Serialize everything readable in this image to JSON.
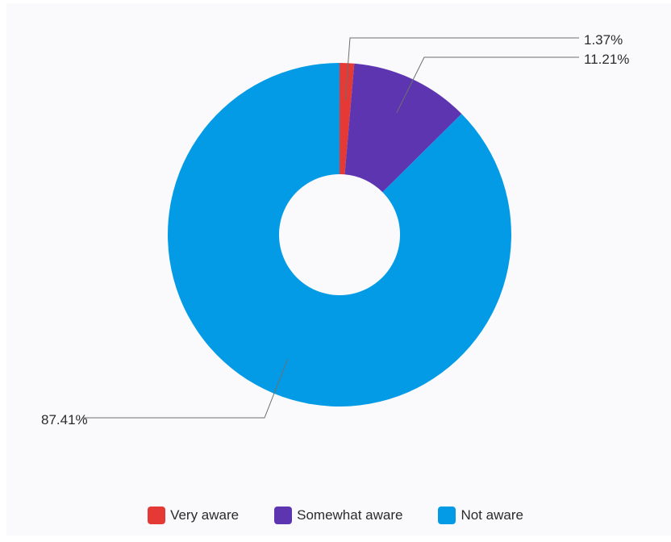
{
  "chart_data": {
    "type": "pie",
    "variant": "donut",
    "title": "",
    "categories": [
      "Very aware",
      "Somewhat aware",
      "Not aware"
    ],
    "values": [
      1.37,
      11.21,
      87.41
    ],
    "labels": [
      "1.37%",
      "11.21%",
      "87.41%"
    ],
    "colors": [
      "#e53935",
      "#5e35b1",
      "#039be5"
    ],
    "legend_position": "bottom-center",
    "start_angle": "top, clockwise"
  }
}
